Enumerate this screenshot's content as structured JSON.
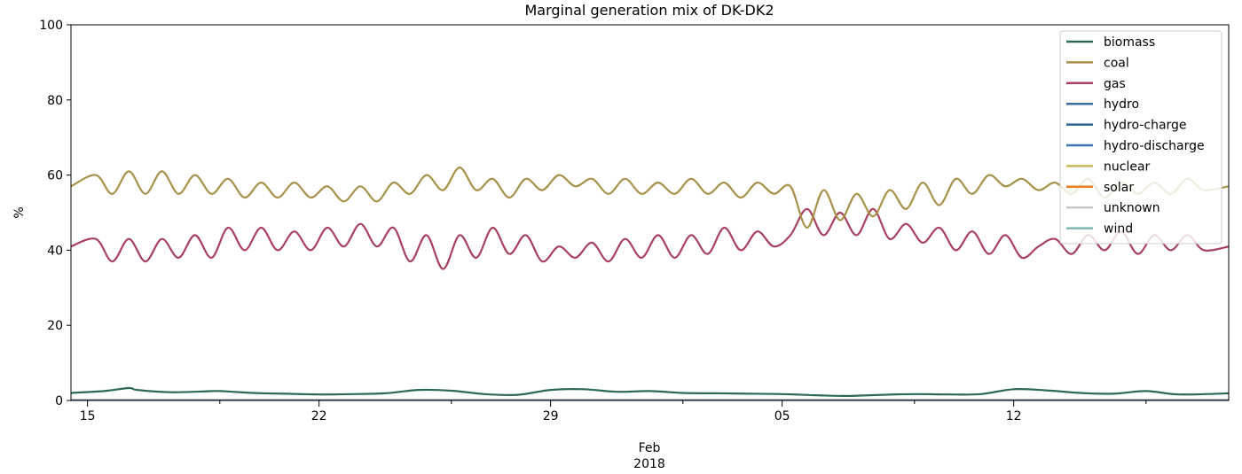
{
  "chart_data": {
    "type": "line",
    "title": "Marginal generation mix of DK-DK2",
    "ylabel": "%",
    "ylim": [
      0,
      100
    ],
    "yticks": [
      0,
      20,
      40,
      60,
      80,
      100
    ],
    "xlim": [
      "2018-01-14T12:00",
      "2018-02-18T12:00"
    ],
    "xticks": [
      {
        "date": "2018-01-15",
        "label": "15"
      },
      {
        "date": "2018-01-22",
        "label": "22"
      },
      {
        "date": "2018-01-29",
        "label": "29"
      },
      {
        "date": "2018-02-05",
        "label": "05"
      },
      {
        "date": "2018-02-12",
        "label": "12"
      }
    ],
    "x_minor_ticks": [
      "2018-01-19",
      "2018-01-26",
      "2018-02-02",
      "2018-02-09",
      "2018-02-16"
    ],
    "xlabel_lines": [
      "Feb",
      "2018"
    ],
    "grid": false,
    "legend": "top-right",
    "series": [
      {
        "name": "biomass",
        "color": "#2d6a55",
        "x": [
          "2018-01-14T12:00",
          "2018-01-15T12:00",
          "2018-01-16T06:00",
          "2018-01-16T12:00",
          "2018-01-17T12:00",
          "2018-01-18T12:00",
          "2018-01-19T00:00",
          "2018-01-20T00:00",
          "2018-01-21T00:00",
          "2018-01-22T00:00",
          "2018-01-23T00:00",
          "2018-01-24T00:00",
          "2018-01-25T00:00",
          "2018-01-26T00:00",
          "2018-01-27T00:00",
          "2018-01-28T00:00",
          "2018-01-29T00:00",
          "2018-01-30T00:00",
          "2018-01-31T00:00",
          "2018-02-01T00:00",
          "2018-02-02T00:00",
          "2018-02-03T00:00",
          "2018-02-04T00:00",
          "2018-02-05T00:00",
          "2018-02-06T00:00",
          "2018-02-07T00:00",
          "2018-02-08T00:00",
          "2018-02-09T00:00",
          "2018-02-10T00:00",
          "2018-02-11T00:00",
          "2018-02-12T00:00",
          "2018-02-13T00:00",
          "2018-02-14T00:00",
          "2018-02-15T00:00",
          "2018-02-16T00:00",
          "2018-02-17T00:00",
          "2018-02-18T12:00"
        ],
        "y": [
          2.0,
          2.5,
          3.3,
          2.8,
          2.2,
          2.4,
          2.5,
          2.0,
          1.8,
          1.6,
          1.7,
          1.9,
          2.8,
          2.6,
          1.7,
          1.5,
          2.8,
          3.0,
          2.3,
          2.5,
          2.0,
          1.9,
          1.8,
          1.7,
          1.4,
          1.2,
          1.5,
          1.7,
          1.6,
          1.7,
          3.0,
          2.7,
          2.0,
          1.8,
          2.5,
          1.6,
          1.9
        ]
      },
      {
        "name": "coal",
        "color": "#a8914a",
        "x": [
          "2018-01-14T12:00",
          "2018-01-15T06:00",
          "2018-01-15T18:00",
          "2018-01-16T06:00",
          "2018-01-16T18:00",
          "2018-01-17T06:00",
          "2018-01-17T18:00",
          "2018-01-18T06:00",
          "2018-01-18T18:00",
          "2018-01-19T06:00",
          "2018-01-19T18:00",
          "2018-01-20T06:00",
          "2018-01-20T18:00",
          "2018-01-21T06:00",
          "2018-01-21T18:00",
          "2018-01-22T06:00",
          "2018-01-22T18:00",
          "2018-01-23T06:00",
          "2018-01-23T18:00",
          "2018-01-24T06:00",
          "2018-01-24T18:00",
          "2018-01-25T06:00",
          "2018-01-25T18:00",
          "2018-01-26T06:00",
          "2018-01-26T18:00",
          "2018-01-27T06:00",
          "2018-01-27T18:00",
          "2018-01-28T06:00",
          "2018-01-28T18:00",
          "2018-01-29T06:00",
          "2018-01-29T18:00",
          "2018-01-30T06:00",
          "2018-01-30T18:00",
          "2018-01-31T06:00",
          "2018-01-31T18:00",
          "2018-02-01T06:00",
          "2018-02-01T18:00",
          "2018-02-02T06:00",
          "2018-02-02T18:00",
          "2018-02-03T06:00",
          "2018-02-03T18:00",
          "2018-02-04T06:00",
          "2018-02-04T18:00",
          "2018-02-05T06:00",
          "2018-02-05T18:00",
          "2018-02-06T06:00",
          "2018-02-06T18:00",
          "2018-02-07T06:00",
          "2018-02-07T18:00",
          "2018-02-08T06:00",
          "2018-02-08T18:00",
          "2018-02-09T06:00",
          "2018-02-09T18:00",
          "2018-02-10T06:00",
          "2018-02-10T18:00",
          "2018-02-11T06:00",
          "2018-02-11T18:00",
          "2018-02-12T06:00",
          "2018-02-12T18:00",
          "2018-02-13T06:00",
          "2018-02-13T18:00",
          "2018-02-14T06:00",
          "2018-02-14T18:00",
          "2018-02-15T06:00",
          "2018-02-15T18:00",
          "2018-02-16T06:00",
          "2018-02-16T18:00",
          "2018-02-17T06:00",
          "2018-02-17T18:00",
          "2018-02-18T12:00"
        ],
        "y": [
          57,
          60,
          55,
          61,
          55,
          61,
          55,
          60,
          55,
          59,
          54,
          58,
          54,
          58,
          54,
          57,
          53,
          57,
          53,
          58,
          55,
          60,
          56,
          62,
          56,
          59,
          54,
          59,
          56,
          60,
          57,
          59,
          55,
          59,
          55,
          58,
          55,
          59,
          55,
          58,
          54,
          58,
          55,
          57,
          46,
          56,
          48,
          55,
          49,
          56,
          51,
          58,
          52,
          59,
          55,
          60,
          57,
          59,
          56,
          58,
          55,
          59,
          54,
          58,
          55,
          58,
          55,
          59,
          56,
          57
        ]
      },
      {
        "name": "gas",
        "color": "#a8405e",
        "x": [
          "2018-01-14T12:00",
          "2018-01-15T06:00",
          "2018-01-15T18:00",
          "2018-01-16T06:00",
          "2018-01-16T18:00",
          "2018-01-17T06:00",
          "2018-01-17T18:00",
          "2018-01-18T06:00",
          "2018-01-18T18:00",
          "2018-01-19T06:00",
          "2018-01-19T18:00",
          "2018-01-20T06:00",
          "2018-01-20T18:00",
          "2018-01-21T06:00",
          "2018-01-21T18:00",
          "2018-01-22T06:00",
          "2018-01-22T18:00",
          "2018-01-23T06:00",
          "2018-01-23T18:00",
          "2018-01-24T06:00",
          "2018-01-24T18:00",
          "2018-01-25T06:00",
          "2018-01-25T18:00",
          "2018-01-26T06:00",
          "2018-01-26T18:00",
          "2018-01-27T06:00",
          "2018-01-27T18:00",
          "2018-01-28T06:00",
          "2018-01-28T18:00",
          "2018-01-29T06:00",
          "2018-01-29T18:00",
          "2018-01-30T06:00",
          "2018-01-30T18:00",
          "2018-01-31T06:00",
          "2018-01-31T18:00",
          "2018-02-01T06:00",
          "2018-02-01T18:00",
          "2018-02-02T06:00",
          "2018-02-02T18:00",
          "2018-02-03T06:00",
          "2018-02-03T18:00",
          "2018-02-04T06:00",
          "2018-02-04T18:00",
          "2018-02-05T06:00",
          "2018-02-05T18:00",
          "2018-02-06T06:00",
          "2018-02-06T18:00",
          "2018-02-07T06:00",
          "2018-02-07T18:00",
          "2018-02-08T06:00",
          "2018-02-08T18:00",
          "2018-02-09T06:00",
          "2018-02-09T18:00",
          "2018-02-10T06:00",
          "2018-02-10T18:00",
          "2018-02-11T06:00",
          "2018-02-11T18:00",
          "2018-02-12T06:00",
          "2018-02-12T18:00",
          "2018-02-13T06:00",
          "2018-02-13T18:00",
          "2018-02-14T06:00",
          "2018-02-14T18:00",
          "2018-02-15T06:00",
          "2018-02-15T18:00",
          "2018-02-16T06:00",
          "2018-02-16T18:00",
          "2018-02-17T06:00",
          "2018-02-17T18:00",
          "2018-02-18T12:00"
        ],
        "y": [
          41,
          43,
          37,
          43,
          37,
          43,
          38,
          44,
          38,
          46,
          40,
          46,
          40,
          45,
          40,
          46,
          41,
          47,
          41,
          46,
          37,
          44,
          35,
          44,
          38,
          46,
          39,
          44,
          37,
          41,
          38,
          42,
          37,
          43,
          38,
          44,
          38,
          44,
          39,
          46,
          40,
          45,
          41,
          44,
          51,
          44,
          50,
          44,
          51,
          43,
          47,
          42,
          46,
          40,
          45,
          39,
          44,
          38,
          41,
          43,
          39,
          44,
          40,
          45,
          39,
          44,
          40,
          44,
          40,
          41
        ]
      },
      {
        "name": "hydro",
        "color": "#3a6ea5",
        "x": [
          "2018-01-14T12:00",
          "2018-02-18T12:00"
        ],
        "y": [
          0,
          0
        ]
      },
      {
        "name": "hydro-charge",
        "color": "#2f6496",
        "x": [
          "2018-01-14T12:00",
          "2018-02-18T12:00"
        ],
        "y": [
          0,
          0
        ]
      },
      {
        "name": "hydro-discharge",
        "color": "#3d74b0",
        "x": [
          "2018-01-14T12:00",
          "2018-02-18T12:00"
        ],
        "y": [
          0,
          0
        ]
      },
      {
        "name": "nuclear",
        "color": "#c6b95a",
        "x": [
          "2018-01-14T12:00",
          "2018-02-18T12:00"
        ],
        "y": [
          0,
          0
        ]
      },
      {
        "name": "solar",
        "color": "#f07b1a",
        "x": [
          "2018-01-14T12:00",
          "2018-02-18T12:00"
        ],
        "y": [
          0,
          0
        ]
      },
      {
        "name": "unknown",
        "color": "#c8c8c8",
        "x": [
          "2018-01-14T12:00",
          "2018-02-18T12:00"
        ],
        "y": [
          0,
          0
        ]
      },
      {
        "name": "wind",
        "color": "#7fb6ad",
        "x": [
          "2018-01-14T12:00",
          "2018-02-18T12:00"
        ],
        "y": [
          0,
          0
        ]
      }
    ]
  }
}
